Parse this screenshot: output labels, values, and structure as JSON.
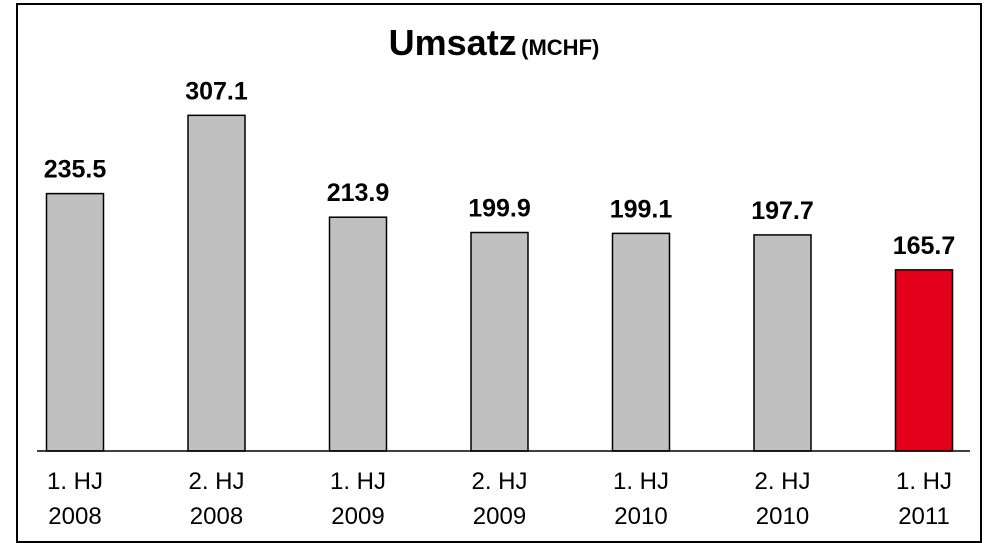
{
  "chart_data": {
    "type": "bar",
    "title": "Umsatz",
    "unit": "(MCHF)",
    "categories": [
      "1. HJ\n2008",
      "2. HJ\n2008",
      "1. HJ\n2009",
      "2. HJ\n2009",
      "1. HJ\n2010",
      "2. HJ\n2010",
      "1. HJ\n2011"
    ],
    "values": [
      235.5,
      307.1,
      213.9,
      199.9,
      199.1,
      197.7,
      165.7
    ],
    "colors": [
      "#c0c0c0",
      "#c0c0c0",
      "#c0c0c0",
      "#c0c0c0",
      "#c0c0c0",
      "#c0c0c0",
      "#e2001a"
    ]
  }
}
